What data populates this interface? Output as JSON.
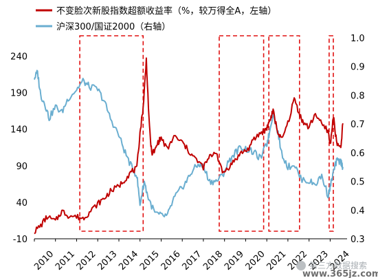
{
  "chart_data": {
    "type": "line",
    "title": "",
    "series": [
      {
        "name": "不变脸次新股指数超额收益率（%，较万得全A，左轴）",
        "color": "#c00000",
        "axis": "left",
        "x": [
          2010.0,
          2010.3,
          2010.6,
          2011.0,
          2011.3,
          2011.6,
          2012.0,
          2012.3,
          2012.6,
          2013.0,
          2013.3,
          2013.6,
          2014.0,
          2014.3,
          2014.6,
          2014.85,
          2015.0,
          2015.15,
          2015.3,
          2015.45,
          2015.55,
          2015.7,
          2015.85,
          2016.0,
          2016.3,
          2016.6,
          2017.0,
          2017.3,
          2017.6,
          2018.0,
          2018.3,
          2018.6,
          2018.9,
          2019.2,
          2019.5,
          2019.8,
          2020.1,
          2020.4,
          2020.7,
          2020.9,
          2021.0,
          2021.15,
          2021.3,
          2021.5,
          2021.7,
          2022.0,
          2022.3,
          2022.5,
          2022.7,
          2023.0,
          2023.3,
          2023.6,
          2023.9,
          2024.0,
          2024.15,
          2024.3,
          2024.5,
          2024.6
        ],
        "values": [
          0,
          8,
          20,
          14,
          28,
          22,
          20,
          18,
          26,
          38,
          45,
          55,
          62,
          72,
          82,
          86,
          135,
          170,
          235,
          140,
          108,
          110,
          122,
          128,
          112,
          130,
          122,
          110,
          100,
          88,
          102,
          110,
          80,
          88,
          98,
          108,
          112,
          126,
          135,
          138,
          142,
          152,
          165,
          138,
          125,
          148,
          182,
          165,
          150,
          142,
          162,
          146,
          138,
          118,
          158,
          122,
          112,
          148
        ]
      },
      {
        "name": "沪深300/国证2000（右轴）",
        "color": "#6aaed0",
        "axis": "right",
        "x": [
          2010.0,
          2010.15,
          2010.3,
          2010.5,
          2010.7,
          2011.0,
          2011.3,
          2011.6,
          2012.0,
          2012.3,
          2012.6,
          2013.0,
          2013.3,
          2013.6,
          2014.0,
          2014.3,
          2014.6,
          2014.85,
          2015.0,
          2015.2,
          2015.4,
          2015.7,
          2016.0,
          2016.3,
          2016.6,
          2016.9,
          2017.2,
          2017.5,
          2017.8,
          2018.0,
          2018.3,
          2018.6,
          2018.9,
          2019.2,
          2019.5,
          2019.8,
          2020.1,
          2020.4,
          2020.7,
          2021.0,
          2021.1,
          2021.3,
          2021.5,
          2021.7,
          2022.0,
          2022.3,
          2022.6,
          2023.0,
          2023.3,
          2023.6,
          2023.9,
          2024.0,
          2024.15,
          2024.3,
          2024.5,
          2024.6
        ],
        "values": [
          0.86,
          0.88,
          0.8,
          0.77,
          0.72,
          0.76,
          0.74,
          0.79,
          0.82,
          0.85,
          0.83,
          0.82,
          0.78,
          0.72,
          0.66,
          0.6,
          0.55,
          0.52,
          0.42,
          0.5,
          0.44,
          0.39,
          0.38,
          0.38,
          0.44,
          0.47,
          0.5,
          0.54,
          0.56,
          0.55,
          0.5,
          0.5,
          0.52,
          0.57,
          0.6,
          0.62,
          0.61,
          0.6,
          0.58,
          0.63,
          0.66,
          0.74,
          0.68,
          0.6,
          0.55,
          0.56,
          0.51,
          0.5,
          0.49,
          0.52,
          0.45,
          0.48,
          0.53,
          0.57,
          0.57,
          0.55
        ]
      }
    ],
    "x_tick_labels": [
      "2010",
      "2011",
      "2012",
      "2013",
      "2014",
      "2015",
      "2016",
      "2017",
      "2018",
      "2019",
      "2020",
      "2021",
      "2022",
      "2023",
      "2024"
    ],
    "xlim": [
      2010,
      2024.8
    ],
    "y_left": {
      "ticks": [
        "-10",
        "40",
        "90",
        "140",
        "190",
        "240"
      ],
      "min": -10,
      "max": 265
    },
    "y_right": {
      "ticks": [
        "0.3",
        "0.4",
        "0.5",
        "0.6",
        "0.7",
        "0.8",
        "0.9",
        "1.0"
      ],
      "min": 0.3,
      "max": 1.0
    },
    "highlight_periods": [
      [
        2012.15,
        2015.15
      ],
      [
        2018.75,
        2020.85
      ],
      [
        2021.1,
        2022.55
      ],
      [
        2023.95,
        2024.15
      ]
    ],
    "legend_placement": "top-left",
    "grid": false
  },
  "watermark": {
    "text": "第三方数据搜索",
    "site": "www.365jz.com"
  }
}
